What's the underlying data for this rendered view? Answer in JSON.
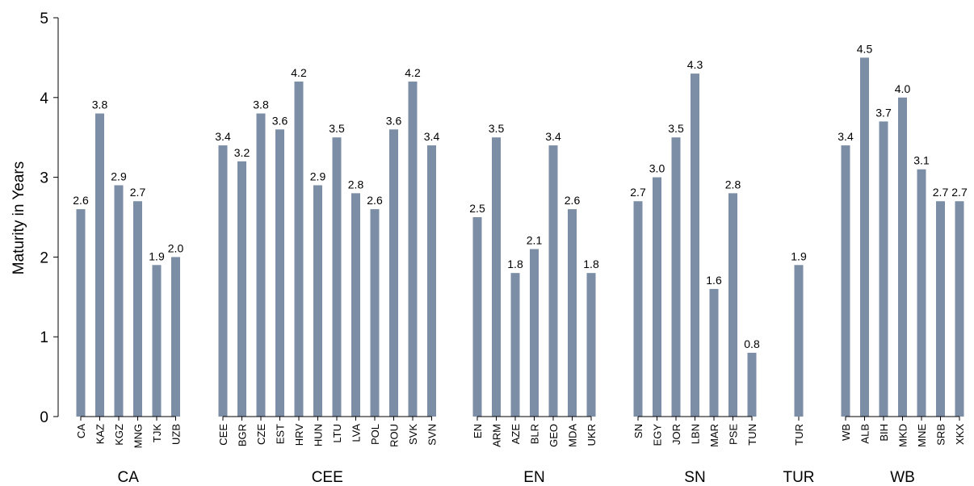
{
  "chart_data": {
    "type": "bar",
    "title": "",
    "ylabel": "Maturity in Years",
    "ylim": [
      0,
      5
    ],
    "yticks": [
      0,
      1,
      2,
      3,
      4,
      5
    ],
    "bar_color": "#7b8ea6",
    "groups": [
      {
        "name": "CA",
        "categories": [
          "CA",
          "KAZ",
          "KGZ",
          "MNG",
          "TJK",
          "UZB"
        ],
        "values": [
          2.6,
          3.8,
          2.9,
          2.7,
          1.9,
          2.0
        ]
      },
      {
        "name": "CEE",
        "categories": [
          "CEE",
          "BGR",
          "CZE",
          "EST",
          "HRV",
          "HUN",
          "LTU",
          "LVA",
          "POL",
          "ROU",
          "SVK",
          "SVN"
        ],
        "values": [
          3.4,
          3.2,
          3.8,
          3.6,
          4.2,
          2.9,
          3.5,
          2.8,
          2.6,
          3.6,
          4.2,
          3.4
        ]
      },
      {
        "name": "EN",
        "categories": [
          "EN",
          "ARM",
          "AZE",
          "BLR",
          "GEO",
          "MDA",
          "UKR"
        ],
        "values": [
          2.5,
          3.5,
          1.8,
          2.1,
          3.4,
          2.6,
          1.8
        ]
      },
      {
        "name": "SN",
        "categories": [
          "SN",
          "EGY",
          "JOR",
          "LBN",
          "MAR",
          "PSE",
          "TUN"
        ],
        "values": [
          2.7,
          3.0,
          3.5,
          4.3,
          1.6,
          2.8,
          0.8
        ]
      },
      {
        "name": "TUR",
        "categories": [
          "TUR"
        ],
        "values": [
          1.9
        ]
      },
      {
        "name": "WB",
        "categories": [
          "WB",
          "ALB",
          "BIH",
          "MKD",
          "MNE",
          "SRB",
          "XKX"
        ],
        "values": [
          3.4,
          4.5,
          3.7,
          4.0,
          3.1,
          2.7,
          2.7
        ]
      }
    ]
  }
}
